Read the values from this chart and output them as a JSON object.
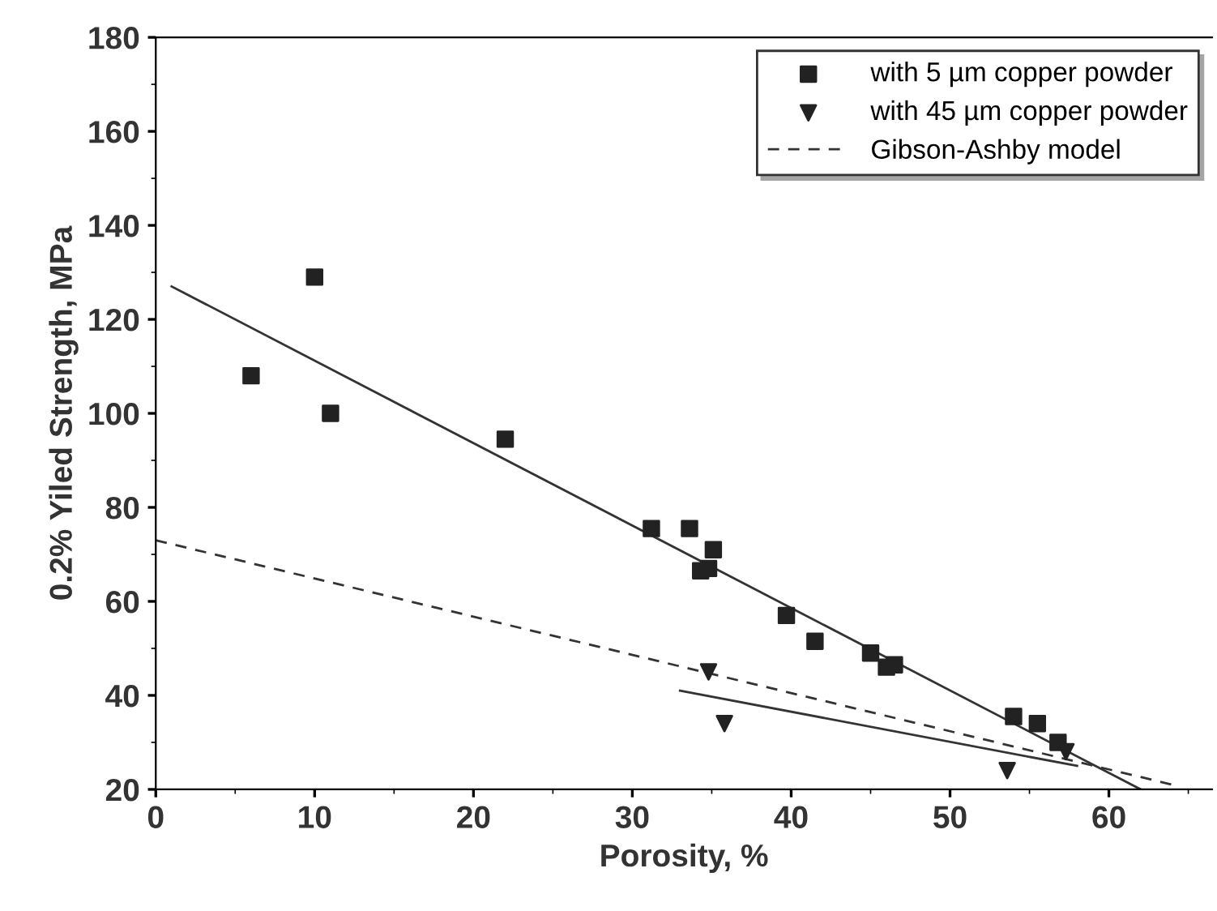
{
  "chart_data": {
    "type": "scatter",
    "xlabel": "Porosity, %",
    "ylabel": "0.2% Yiled Strength, MPa",
    "xlim": [
      0,
      66.5
    ],
    "ylim": [
      20,
      180
    ],
    "xticks": [
      0,
      10,
      20,
      30,
      40,
      50,
      60
    ],
    "yticks": [
      20,
      40,
      60,
      80,
      100,
      120,
      140,
      160,
      180
    ],
    "grid": false,
    "legend": "top right",
    "series": [
      {
        "name": "with 5 µm copper powder",
        "marker": "square",
        "color": "#222222",
        "x": [
          6,
          10,
          11,
          22,
          31.2,
          33.6,
          34.3,
          34.8,
          35.1,
          39.7,
          41.5,
          45,
          46,
          46.5,
          54,
          55.5,
          56.8
        ],
        "values": [
          108,
          129,
          100,
          94.5,
          75.5,
          75.5,
          66.5,
          67,
          71,
          57,
          51.5,
          49,
          46,
          46.5,
          35.5,
          34,
          30
        ]
      },
      {
        "name": "with 45 µm copper powder",
        "marker": "triangle",
        "color": "#222222",
        "x": [
          34.8,
          35.8,
          53.6,
          57.3
        ],
        "values": [
          45,
          34,
          24,
          28
        ]
      },
      {
        "name": "Gibson-Ashby model",
        "type": "line",
        "line_style": "dashed",
        "color": "#333333",
        "x": [
          0,
          64
        ],
        "values": [
          73,
          21
        ]
      },
      {
        "type": "line",
        "line_style": "solid",
        "color": "#333333",
        "x": [
          1,
          62
        ],
        "values": [
          127,
          20
        ]
      },
      {
        "type": "line",
        "line_style": "solid",
        "color": "#333333",
        "x": [
          33,
          58
        ],
        "values": [
          41,
          25
        ]
      }
    ]
  }
}
